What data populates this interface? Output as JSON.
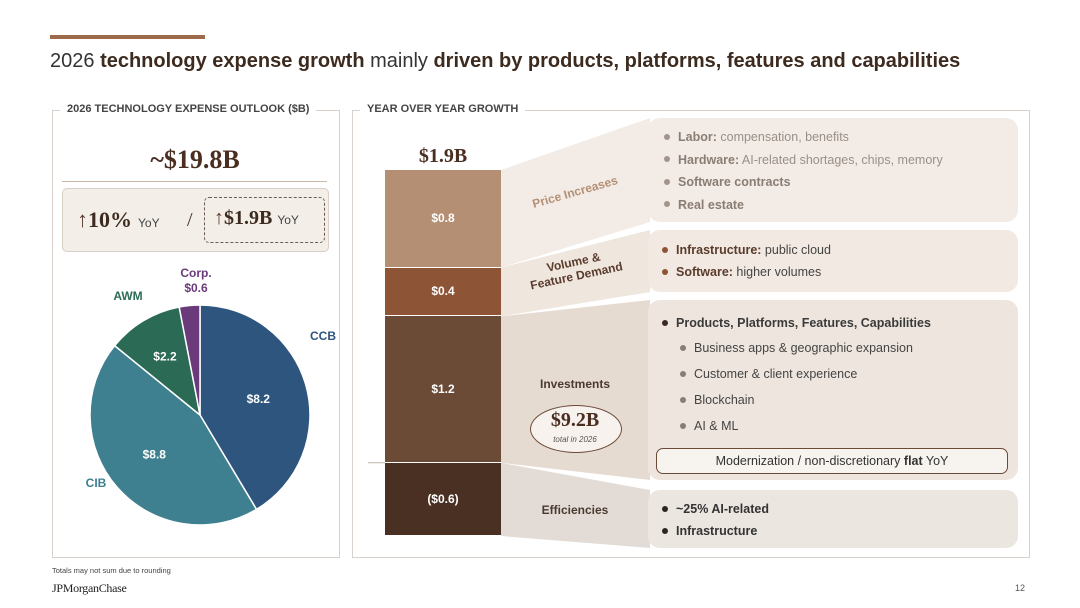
{
  "title": {
    "part1": "2026 ",
    "bold1": "technology expense growth",
    "part2": " mainly ",
    "bold2": "driven by products, platforms, features and capabilities"
  },
  "left_panel": {
    "label": "2026 TECHNOLOGY EXPENSE OUTLOOK ($B)",
    "total": "~$19.8B",
    "yoy_pct_value": "10%",
    "yoy_pct_suffix": "YoY",
    "separator": "/",
    "yoy_abs_value": "$1.9B",
    "yoy_abs_suffix": "YoY",
    "arrow": "↑"
  },
  "right_panel": {
    "label": "YEAR OVER YEAR GROWTH",
    "bar_total": "$1.9B"
  },
  "chart_data": [
    {
      "type": "pie",
      "title": "2026 TECHNOLOGY EXPENSE OUTLOOK ($B)",
      "slices": [
        {
          "name": "CCB",
          "value": 8.2,
          "label": "$8.2",
          "color": "#2d557d"
        },
        {
          "name": "CIB",
          "value": 8.8,
          "label": "$8.8",
          "color": "#3e7f90"
        },
        {
          "name": "AWM",
          "value": 2.2,
          "label": "$2.2",
          "color": "#2b6a55"
        },
        {
          "name": "Corp.",
          "value": 0.6,
          "label": "$0.6",
          "color": "#6b3a7a"
        }
      ]
    },
    {
      "type": "bar",
      "title": "YEAR OVER YEAR GROWTH",
      "stacked": true,
      "total_label": "$1.9B",
      "segments": [
        {
          "name": "Price Increases",
          "value": 0.8,
          "label": "$0.8",
          "color": "#b48f73"
        },
        {
          "name": "Volume & Feature Demand",
          "value": 0.4,
          "label": "$0.4",
          "color": "#8d5436"
        },
        {
          "name": "Investments",
          "value": 1.2,
          "label": "$1.2",
          "color": "#6b4a36"
        },
        {
          "name": "Efficiencies",
          "value": -0.6,
          "label": "($0.6)",
          "color": "#4a3022"
        }
      ]
    }
  ],
  "categories": {
    "price": "Price Increases",
    "volume_line1": "Volume &",
    "volume_line2": "Feature Demand",
    "investments": "Investments",
    "efficiencies": "Efficiencies"
  },
  "investments_badge": {
    "value": "$9.2B",
    "caption": "total in 2026"
  },
  "cards": {
    "price": [
      {
        "bold": "Labor:",
        "text": " compensation, benefits"
      },
      {
        "bold": "Hardware:",
        "text": " AI-related shortages, chips, memory"
      },
      {
        "bold": "Software contracts",
        "text": ""
      },
      {
        "bold": "Real estate",
        "text": ""
      }
    ],
    "volume": [
      {
        "bold": "Infrastructure:",
        "text": " public cloud"
      },
      {
        "bold": "Software:",
        "text": " higher volumes"
      }
    ],
    "investments_header": "Products, Platforms, Features, Capabilities",
    "investments": [
      "Business apps & geographic expansion",
      "Customer & client experience",
      "Blockchain",
      "AI & ML"
    ],
    "modernization": {
      "pre": "Modernization / non-discretionary ",
      "bold": "flat",
      "post": " YoY"
    },
    "efficiencies": [
      "~25% AI-related",
      "Infrastructure"
    ]
  },
  "colors": {
    "price_card": "#f3ece6",
    "volume_card": "#f1e9e2",
    "investments_card": "#eee6de",
    "efficiencies_card": "#ece6e1",
    "accent_brown": "#9b6b4c"
  },
  "footnote": "Totals may not sum due to rounding",
  "logo": "JPMorganChase",
  "page_number": "12"
}
